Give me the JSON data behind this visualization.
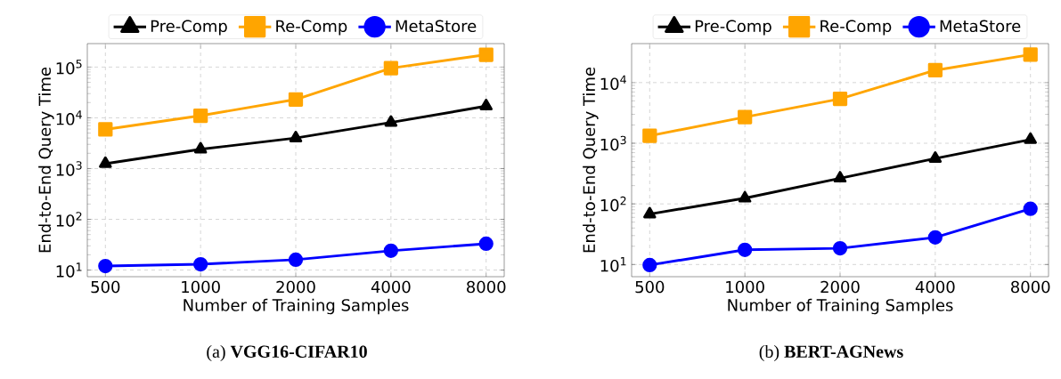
{
  "chart_data": [
    {
      "type": "line",
      "categories": [
        "500",
        "1000",
        "2000",
        "4000",
        "8000"
      ],
      "xlabel": "Number of Training Samples",
      "ylabel": "End-to-End Query Time",
      "log": "y",
      "ylim": [
        7.4,
        290000
      ],
      "yticks": [
        {
          "value": 10,
          "label": "10$^{1}$"
        },
        {
          "value": 100,
          "label": "10$^{2}$"
        },
        {
          "value": 1000,
          "label": "10$^{3}$"
        },
        {
          "value": 10000,
          "label": "10$^{4}$"
        },
        {
          "value": 100000,
          "label": "10$^{5}$"
        }
      ],
      "grid": true,
      "legend": "top",
      "line_style": "solid",
      "series": [
        {
          "name": "Pre-Comp",
          "color": "#000000",
          "marker": "triangle",
          "values": [
            1250,
            2400,
            4000,
            8100,
            17000
          ]
        },
        {
          "name": "Re-Comp",
          "color": "#ffa500",
          "marker": "square",
          "values": [
            5900,
            11000,
            23000,
            95000,
            175000
          ]
        },
        {
          "name": "MetaStore",
          "color": "#0000ff",
          "marker": "circle",
          "values": [
            12,
            13,
            16,
            24,
            33
          ]
        }
      ],
      "annotations": [
        "(a)  **VGG16-CIFAR10**"
      ]
    },
    {
      "type": "line",
      "categories": [
        "500",
        "1000",
        "2000",
        "4000",
        "8000"
      ],
      "xlabel": "Number of Training Samples",
      "ylabel": "End-to-End Query Time",
      "log": "y",
      "ylim": [
        6.3,
        44000
      ],
      "yticks": [
        {
          "value": 10,
          "label": "10$^{1}$"
        },
        {
          "value": 100,
          "label": "10$^{2}$"
        },
        {
          "value": 1000,
          "label": "10$^{3}$"
        },
        {
          "value": 10000,
          "label": "10$^{4}$"
        }
      ],
      "grid": true,
      "legend": "top",
      "line_style": "solid",
      "series": [
        {
          "name": "Pre-Comp",
          "color": "#000000",
          "marker": "triangle",
          "values": [
            68,
            124,
            265,
            560,
            1150
          ]
        },
        {
          "name": "Re-Comp",
          "color": "#ffa500",
          "marker": "square",
          "values": [
            1330,
            2700,
            5400,
            16000,
            29000
          ]
        },
        {
          "name": "MetaStore",
          "color": "#0000ff",
          "marker": "circle",
          "values": [
            9.8,
            17.5,
            18.5,
            28,
            83
          ]
        }
      ],
      "annotations": [
        "(b)  **BERT-AGNews**"
      ]
    }
  ]
}
